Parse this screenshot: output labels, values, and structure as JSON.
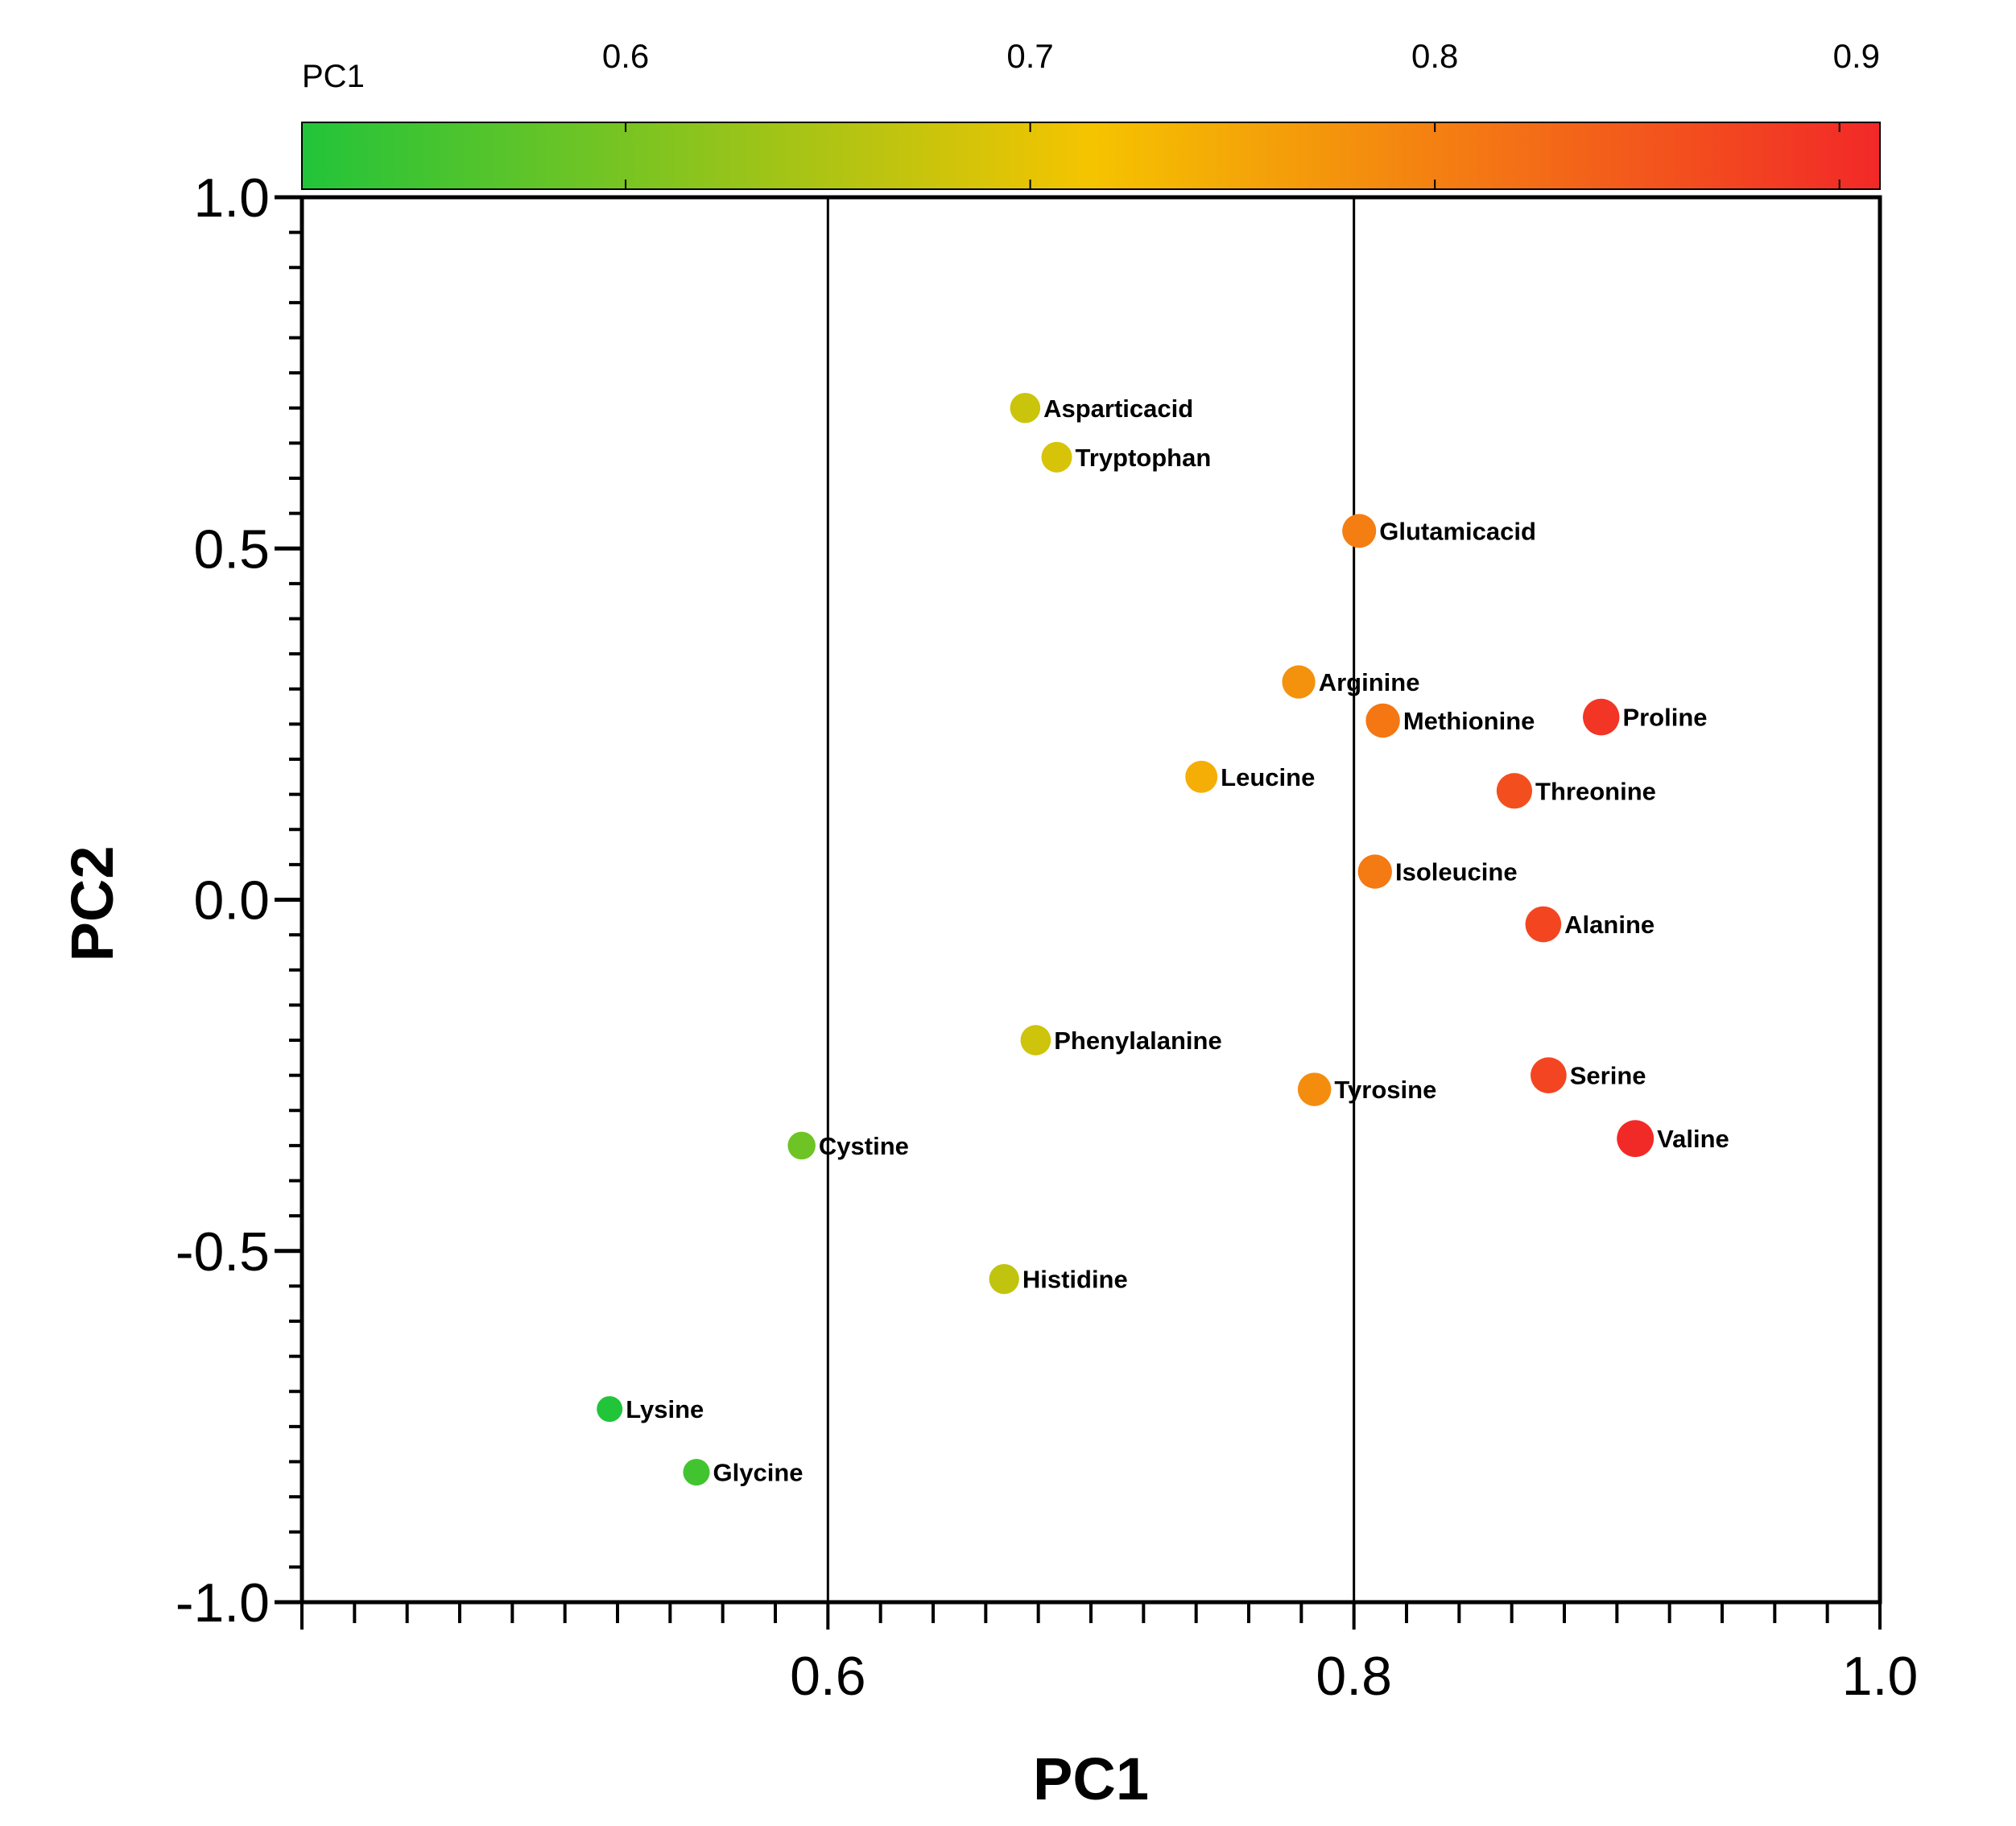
{
  "chart_data": {
    "type": "scatter",
    "xlabel": "PC1",
    "ylabel": "PC2",
    "xlim": [
      0.4,
      1.0
    ],
    "ylim": [
      -1.0,
      1.0
    ],
    "x_ticks": [
      "0.6",
      "0.8",
      "1.0"
    ],
    "y_ticks": [
      "1.0",
      "0.5",
      "0.0",
      "-0.5",
      "-1.0"
    ],
    "reference_lines_x": [
      0.6,
      0.8
    ],
    "colorbar": {
      "label": "PC1",
      "range": [
        0.52,
        0.91
      ],
      "tick_values": [
        0.6,
        0.7,
        0.8,
        0.9
      ],
      "tick_labels": [
        "0.6",
        "0.7",
        "0.8",
        "0.9"
      ],
      "colors": [
        "#22c43a",
        "#f5c400",
        "#f22828"
      ]
    },
    "points": [
      {
        "name": "Asparticacid",
        "x": 0.675,
        "y": 0.7
      },
      {
        "name": "Tryptophan",
        "x": 0.687,
        "y": 0.63
      },
      {
        "name": "Glutamicacid",
        "x": 0.802,
        "y": 0.525
      },
      {
        "name": "Arginine",
        "x": 0.779,
        "y": 0.31
      },
      {
        "name": "Methionine",
        "x": 0.811,
        "y": 0.255
      },
      {
        "name": "Proline",
        "x": 0.894,
        "y": 0.26
      },
      {
        "name": "Leucine",
        "x": 0.742,
        "y": 0.175
      },
      {
        "name": "Threonine",
        "x": 0.861,
        "y": 0.155
      },
      {
        "name": "Isoleucine",
        "x": 0.808,
        "y": 0.04
      },
      {
        "name": "Alanine",
        "x": 0.872,
        "y": -0.035
      },
      {
        "name": "Phenylalanine",
        "x": 0.679,
        "y": -0.2
      },
      {
        "name": "Tyrosine",
        "x": 0.785,
        "y": -0.27
      },
      {
        "name": "Serine",
        "x": 0.874,
        "y": -0.25
      },
      {
        "name": "Valine",
        "x": 0.907,
        "y": -0.34
      },
      {
        "name": "Cystine",
        "x": 0.59,
        "y": -0.35
      },
      {
        "name": "Histidine",
        "x": 0.667,
        "y": -0.54
      },
      {
        "name": "Lysine",
        "x": 0.517,
        "y": -0.725
      },
      {
        "name": "Glycine",
        "x": 0.55,
        "y": -0.815
      }
    ]
  }
}
